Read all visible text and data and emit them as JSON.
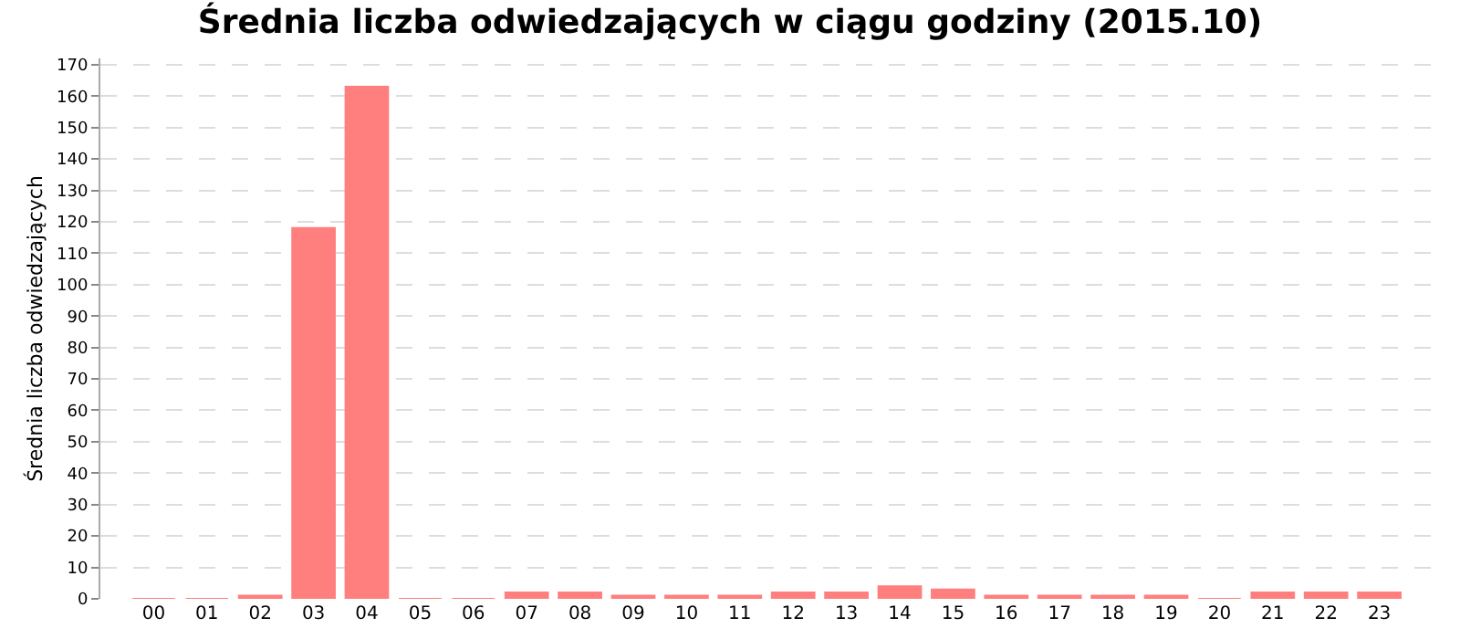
{
  "chart_data": {
    "type": "bar",
    "title": "Średnia liczba odwiedzających w ciągu godziny (2015.10)",
    "ylabel": "Średnia liczba odwiedzających",
    "categories": [
      "00",
      "01",
      "02",
      "03",
      "04",
      "05",
      "06",
      "07",
      "08",
      "09",
      "10",
      "11",
      "12",
      "13",
      "14",
      "15",
      "16",
      "17",
      "18",
      "19",
      "20",
      "21",
      "22",
      "23"
    ],
    "values": [
      0,
      0,
      1,
      118,
      163,
      0,
      0,
      2,
      2,
      1,
      1,
      1,
      2,
      2,
      4,
      3,
      1,
      1,
      1,
      1,
      0,
      2,
      2,
      2
    ],
    "color": "#ff7f7f",
    "ylim": [
      0,
      172
    ],
    "yticks": [
      0,
      10,
      20,
      30,
      40,
      50,
      60,
      70,
      80,
      90,
      100,
      110,
      120,
      130,
      140,
      150,
      160,
      170
    ],
    "grid": "y"
  }
}
